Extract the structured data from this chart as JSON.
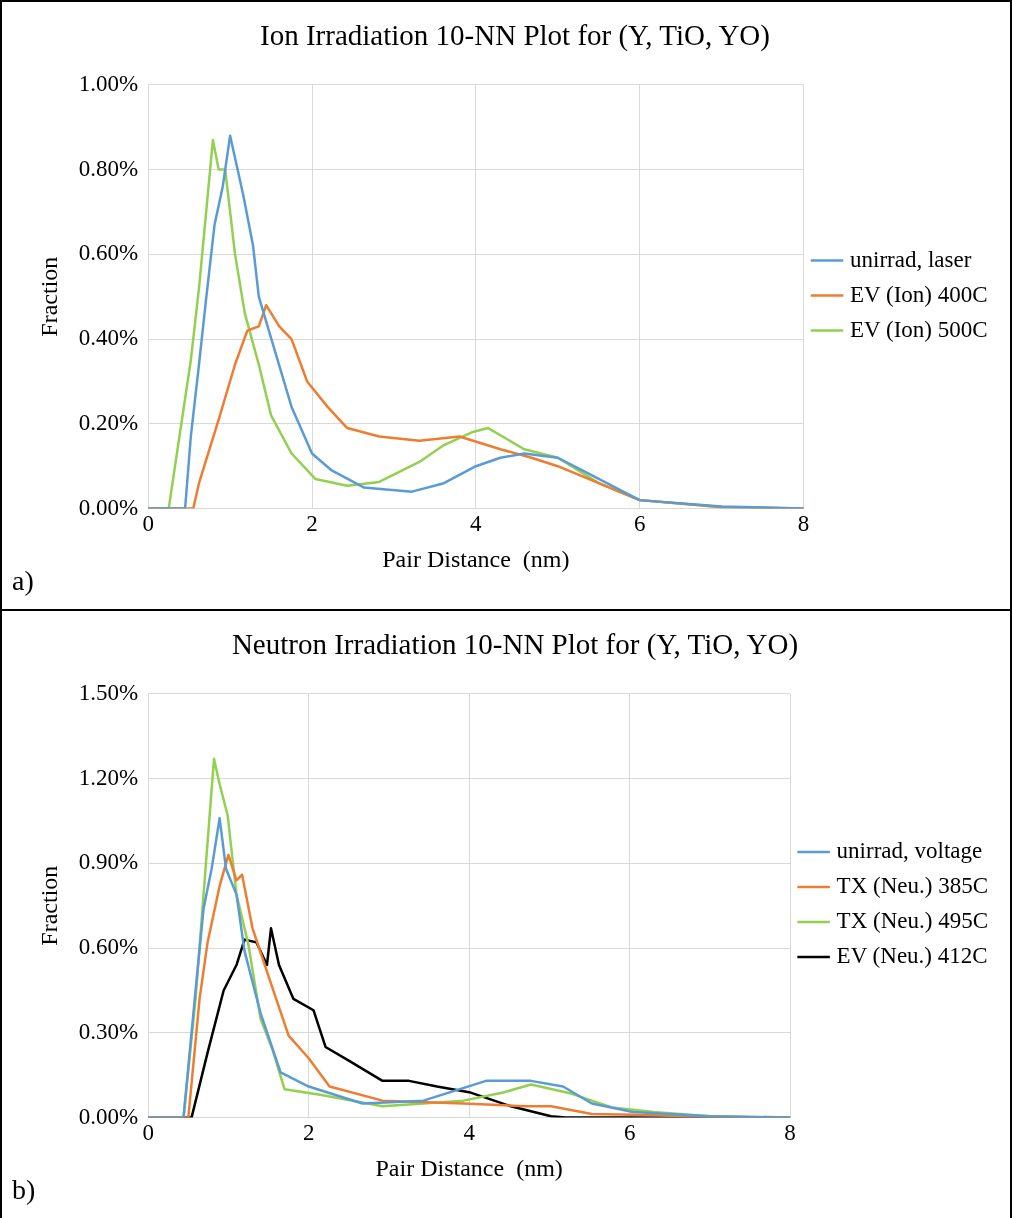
{
  "chart_data": [
    {
      "type": "line",
      "title": "Ion Irradiation 10-NN Plot for (Y, TiO, YO)",
      "xlabel": "Pair Distance  (nm)",
      "ylabel": "Fraction",
      "annotations": [
        "a)"
      ],
      "xlim": [
        0,
        8
      ],
      "xticks": [
        0,
        2,
        4,
        6,
        8
      ],
      "ylim": [
        0,
        1
      ],
      "yticks": [
        {
          "value": 0,
          "label": "0.00%"
        },
        {
          "value": 0.2,
          "label": "0.20%"
        },
        {
          "value": 0.4,
          "label": "0.40%"
        },
        {
          "value": 0.6,
          "label": "0.60%"
        },
        {
          "value": 0.8,
          "label": "0.80%"
        },
        {
          "value": 1,
          "label": "1.00%"
        }
      ],
      "grid": true,
      "legend": "right",
      "marker": "none",
      "line_style": "solid",
      "series": [
        {
          "name": "unirrad, laser",
          "color": "#5b9bd5",
          "x": [
            0,
            0.45,
            0.52,
            0.62,
            0.71,
            0.81,
            0.91,
            1.0,
            1.16,
            1.28,
            1.35,
            1.55,
            1.75,
            2.0,
            2.24,
            2.63,
            3.22,
            3.61,
            4.0,
            4.3,
            4.59,
            5.0,
            5.3,
            5.7,
            6.0,
            7.0,
            8.0
          ],
          "values": [
            0,
            0,
            0.17,
            0.34,
            0.5,
            0.67,
            0.76,
            0.88,
            0.74,
            0.62,
            0.5,
            0.37,
            0.24,
            0.13,
            0.09,
            0.05,
            0.04,
            0.06,
            0.1,
            0.12,
            0.13,
            0.12,
            0.09,
            0.05,
            0.02,
            0.005,
            0
          ]
        },
        {
          "name": "EV (Ion) 400C",
          "color": "#ed7d31",
          "x": [
            0,
            0.55,
            0.62,
            0.86,
            1.06,
            1.21,
            1.35,
            1.44,
            1.6,
            1.75,
            1.94,
            2.19,
            2.43,
            2.82,
            3.31,
            3.8,
            4.3,
            4.68,
            5.0,
            5.5,
            6.0,
            7.0,
            8.0
          ],
          "values": [
            0,
            0,
            0.06,
            0.21,
            0.34,
            0.42,
            0.43,
            0.48,
            0.43,
            0.4,
            0.3,
            0.24,
            0.19,
            0.17,
            0.16,
            0.17,
            0.14,
            0.12,
            0.1,
            0.06,
            0.02,
            0.004,
            0
          ]
        },
        {
          "name": "EV (Ion) 500C",
          "color": "#92d050",
          "x": [
            0,
            0.25,
            0.52,
            0.62,
            0.79,
            0.86,
            0.94,
            1.06,
            1.18,
            1.35,
            1.5,
            1.75,
            2.04,
            2.43,
            2.82,
            3.31,
            3.61,
            3.95,
            4.15,
            4.59,
            5.0,
            5.5,
            6.0,
            7.0,
            8.0
          ],
          "values": [
            0,
            0,
            0.35,
            0.52,
            0.87,
            0.8,
            0.8,
            0.6,
            0.46,
            0.34,
            0.22,
            0.13,
            0.07,
            0.054,
            0.063,
            0.11,
            0.15,
            0.18,
            0.19,
            0.14,
            0.12,
            0.06,
            0.02,
            0.003,
            0
          ]
        }
      ]
    },
    {
      "type": "line",
      "title": "Neutron Irradiation 10-NN Plot for (Y, TiO, YO)",
      "xlabel": "Pair Distance  (nm)",
      "ylabel": "Fraction",
      "annotations": [
        "b)"
      ],
      "xlim": [
        0,
        8
      ],
      "xticks": [
        0,
        2,
        4,
        6,
        8
      ],
      "ylim": [
        0,
        1.5
      ],
      "yticks": [
        {
          "value": 0,
          "label": "0.00%"
        },
        {
          "value": 0.3,
          "label": "0.30%"
        },
        {
          "value": 0.6,
          "label": "0.60%"
        },
        {
          "value": 0.9,
          "label": "0.90%"
        },
        {
          "value": 1.2,
          "label": "1.20%"
        },
        {
          "value": 1.5,
          "label": "1.50%"
        }
      ],
      "grid": true,
      "legend": "right",
      "marker": "none",
      "line_style": "solid",
      "series": [
        {
          "name": "unirrad, voltage",
          "color": "#5b9bd5",
          "x": [
            0,
            0.44,
            0.59,
            0.69,
            0.79,
            0.89,
            0.97,
            1.1,
            1.2,
            1.4,
            1.65,
            2.0,
            2.67,
            3.43,
            4.21,
            4.77,
            5.17,
            5.53,
            6.04,
            7.0,
            8.0
          ],
          "values": [
            0,
            0,
            0.45,
            0.74,
            0.88,
            1.06,
            0.88,
            0.79,
            0.59,
            0.37,
            0.16,
            0.11,
            0.05,
            0.06,
            0.13,
            0.13,
            0.11,
            0.05,
            0.02,
            0.005,
            0
          ]
        },
        {
          "name": "TX (Neu.) 385C",
          "color": "#ed7d31",
          "x": [
            0,
            0.5,
            0.64,
            0.74,
            0.89,
            1.0,
            1.1,
            1.17,
            1.3,
            1.5,
            1.75,
            2.0,
            2.26,
            2.92,
            3.93,
            4.7,
            5.02,
            5.53,
            6.04,
            7.0,
            8.0
          ],
          "values": [
            0,
            0,
            0.42,
            0.62,
            0.82,
            0.93,
            0.84,
            0.86,
            0.67,
            0.5,
            0.29,
            0.21,
            0.11,
            0.06,
            0.05,
            0.04,
            0.04,
            0.013,
            0.01,
            0.003,
            0
          ]
        },
        {
          "name": "TX (Neu.) 495C",
          "color": "#92d050",
          "x": [
            0,
            0.44,
            0.59,
            0.69,
            0.82,
            0.89,
            0.99,
            1.1,
            1.25,
            1.4,
            1.55,
            1.7,
            2.16,
            2.92,
            3.93,
            4.44,
            4.77,
            5.27,
            5.78,
            6.3,
            7.0,
            8.0
          ],
          "values": [
            0,
            0,
            0.42,
            0.79,
            1.27,
            1.18,
            1.07,
            0.79,
            0.61,
            0.35,
            0.24,
            0.1,
            0.08,
            0.04,
            0.06,
            0.09,
            0.117,
            0.085,
            0.036,
            0.02,
            0.005,
            0
          ]
        },
        {
          "name": "EV (Neu.) 412C",
          "color": "#000000",
          "x": [
            0,
            0.54,
            0.74,
            0.94,
            1.1,
            1.2,
            1.35,
            1.48,
            1.53,
            1.63,
            1.81,
            2.06,
            2.21,
            2.51,
            2.92,
            3.25,
            3.6,
            4.0,
            4.52,
            5.02,
            5.2,
            8.0
          ],
          "values": [
            0,
            0,
            0.23,
            0.45,
            0.54,
            0.63,
            0.62,
            0.54,
            0.67,
            0.54,
            0.42,
            0.38,
            0.25,
            0.2,
            0.13,
            0.13,
            0.11,
            0.09,
            0.04,
            0.005,
            0,
            0
          ]
        }
      ]
    }
  ]
}
